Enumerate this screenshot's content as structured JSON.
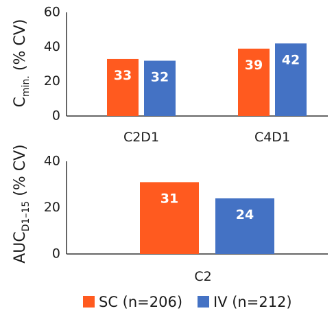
{
  "colors": {
    "sc": "#FF5A1F",
    "iv": "#4472C4"
  },
  "legend": [
    {
      "name": "SC (n=206)",
      "color": "#FF5A1F"
    },
    {
      "name": "IV (n=212)",
      "color": "#4472C4"
    }
  ],
  "chart_data": [
    {
      "type": "bar",
      "ylabel_main": "C",
      "ylabel_sub": "min.",
      "ylabel_suffix": " (% CV)",
      "xlabel": "",
      "ylim": [
        0,
        60
      ],
      "yticks": [
        0,
        20,
        40,
        60
      ],
      "categories": [
        "C2D1",
        "C4D1"
      ],
      "series": [
        {
          "name": "SC (n=206)",
          "values": [
            33,
            39
          ]
        },
        {
          "name": "IV (n=212)",
          "values": [
            32,
            42
          ]
        }
      ],
      "data_labels": [
        [
          "33",
          "39"
        ],
        [
          "32",
          "42"
        ]
      ],
      "grid": false
    },
    {
      "type": "bar",
      "ylabel_main": "AUC",
      "ylabel_sub": "D1–15",
      "ylabel_suffix": " (% CV)",
      "xlabel": "",
      "ylim": [
        0,
        40
      ],
      "yticks": [
        0,
        20,
        40
      ],
      "categories": [
        "C2"
      ],
      "series": [
        {
          "name": "SC (n=206)",
          "values": [
            31
          ]
        },
        {
          "name": "IV (n=212)",
          "values": [
            24
          ]
        }
      ],
      "data_labels": [
        [
          "31"
        ],
        [
          "24"
        ]
      ],
      "grid": false
    }
  ]
}
